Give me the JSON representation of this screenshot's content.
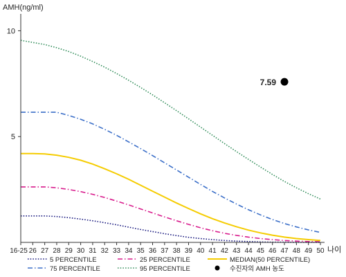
{
  "chart_data": {
    "type": "line",
    "ylabel": "AMH(ng/ml)",
    "xlabel": "나이",
    "ylim": [
      0,
      10.8
    ],
    "y_ticks": [
      10,
      5
    ],
    "categories": [
      "16-25",
      "26",
      "27",
      "28",
      "29",
      "30",
      "31",
      "32",
      "33",
      "34",
      "35",
      "36",
      "37",
      "38",
      "39",
      "40",
      "41",
      "42",
      "43",
      "44",
      "45",
      "46",
      "47",
      "48",
      "49",
      "50"
    ],
    "series": [
      {
        "name": "95 PERCENTILE",
        "color": "#2e8b57",
        "style": "dotted",
        "values": [
          9.55,
          9.45,
          9.35,
          9.2,
          9.02,
          8.8,
          8.55,
          8.28,
          7.98,
          7.66,
          7.32,
          6.97,
          6.6,
          6.22,
          5.84,
          5.45,
          5.06,
          4.67,
          4.29,
          3.92,
          3.56,
          3.21,
          2.88,
          2.58,
          2.3,
          2.05
        ]
      },
      {
        "name": "75 PERCENTILE",
        "color": "#3a6ec8",
        "style": "dashdot",
        "values": [
          6.15,
          6.15,
          6.15,
          6.15,
          6.0,
          5.82,
          5.6,
          5.34,
          5.06,
          4.75,
          4.43,
          4.1,
          3.76,
          3.42,
          3.08,
          2.74,
          2.41,
          2.1,
          1.81,
          1.54,
          1.3,
          1.08,
          0.89,
          0.73,
          0.59,
          0.47
        ]
      },
      {
        "name": "MEDIAN(50 PERCENTILE)",
        "color": "#f5cc00",
        "style": "solid",
        "values": [
          4.2,
          4.2,
          4.18,
          4.12,
          4.02,
          3.88,
          3.7,
          3.48,
          3.24,
          2.98,
          2.7,
          2.42,
          2.14,
          1.86,
          1.6,
          1.35,
          1.12,
          0.92,
          0.74,
          0.58,
          0.45,
          0.34,
          0.25,
          0.18,
          0.13,
          0.09
        ]
      },
      {
        "name": "25 PERCENTILE",
        "color": "#d81b8c",
        "style": "dashdot",
        "values": [
          2.62,
          2.62,
          2.62,
          2.58,
          2.5,
          2.4,
          2.27,
          2.12,
          1.95,
          1.77,
          1.58,
          1.39,
          1.2,
          1.02,
          0.85,
          0.69,
          0.55,
          0.43,
          0.33,
          0.25,
          0.18,
          0.13,
          0.09,
          0.06,
          0.04,
          0.03
        ]
      },
      {
        "name": "5 PERCENTILE",
        "color": "#10107a",
        "style": "dotted",
        "values": [
          1.25,
          1.25,
          1.25,
          1.22,
          1.17,
          1.1,
          1.02,
          0.93,
          0.83,
          0.72,
          0.61,
          0.51,
          0.41,
          0.32,
          0.24,
          0.18,
          0.13,
          0.09,
          0.06,
          0.04,
          0.02,
          0.01,
          0.01,
          0.0,
          0.0,
          0.0
        ]
      }
    ],
    "point": {
      "name": "수진자의 AMH 농도",
      "x": "47",
      "y": 7.59,
      "label": "7.59",
      "color": "#000000"
    },
    "legend_position": "bottom"
  }
}
